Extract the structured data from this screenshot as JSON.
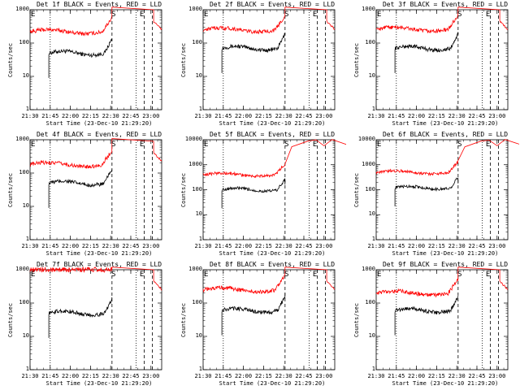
{
  "chart_data": [
    {
      "type": "line",
      "title": "Det 1f BLACK = Events, RED = LLD",
      "xlabel": "Start Time (23-Dec-10 21:29:20)",
      "ylabel": "Counts/sec",
      "log_y": true,
      "ylim": [
        1,
        1000
      ],
      "xlim": [
        "21:30",
        "23:08"
      ],
      "xticks": [
        "21:30",
        "21:45",
        "22:00",
        "22:15",
        "22:30",
        "22:45",
        "23:00"
      ],
      "yticks": [
        "1",
        "10",
        "100",
        "1000"
      ],
      "markers": [
        {
          "label": "E",
          "time": "21:30"
        },
        {
          "label": "S",
          "time": "22:30"
        },
        {
          "label": "E",
          "time": "22:51"
        }
      ],
      "series": [
        {
          "color": "#000000",
          "shape": "low_then_rise",
          "start": "21:44",
          "base": 50,
          "peak": 130
        },
        {
          "color": "#ff0000",
          "shape": "low_then_rise",
          "start": "21:30",
          "base": 220,
          "peak": 1000
        }
      ]
    },
    {
      "type": "line",
      "title": "Det 2f BLACK = Events, RED = LLD",
      "xlabel": "Start Time (23-Dec-10 21:29:20)",
      "ylabel": "Counts/sec",
      "log_y": true,
      "ylim": [
        1,
        1000
      ],
      "xlim": [
        "21:30",
        "23:08"
      ],
      "xticks": [
        "21:30",
        "21:45",
        "22:00",
        "22:15",
        "22:30",
        "22:45",
        "23:00"
      ],
      "yticks": [
        "1",
        "10",
        "100",
        "1000"
      ],
      "markers": [
        {
          "label": "E",
          "time": "21:30"
        },
        {
          "label": "S",
          "time": "22:30"
        },
        {
          "label": "E",
          "time": "22:51"
        }
      ],
      "series": [
        {
          "color": "#000000",
          "shape": "low_then_rise",
          "start": "21:44",
          "base": 70,
          "peak": 200
        },
        {
          "color": "#ff0000",
          "shape": "low_then_rise",
          "start": "21:30",
          "base": 250,
          "peak": 1000
        }
      ]
    },
    {
      "type": "line",
      "title": "Det 3f BLACK = Events, RED = LLD",
      "xlabel": "Start Time (23-Dec-10 21:29:20)",
      "ylabel": "Counts/sec",
      "log_y": true,
      "ylim": [
        1,
        1000
      ],
      "xlim": [
        "21:30",
        "23:08"
      ],
      "xticks": [
        "21:30",
        "21:45",
        "22:00",
        "22:15",
        "22:30",
        "22:45",
        "23:00"
      ],
      "yticks": [
        "1",
        "10",
        "100",
        "1000"
      ],
      "markers": [
        {
          "label": "E",
          "time": "21:30"
        },
        {
          "label": "S",
          "time": "22:30"
        },
        {
          "label": "E",
          "time": "22:51"
        }
      ],
      "series": [
        {
          "color": "#000000",
          "shape": "low_then_rise",
          "start": "21:44",
          "base": 70,
          "peak": 180
        },
        {
          "color": "#ff0000",
          "shape": "low_then_rise",
          "start": "21:30",
          "base": 260,
          "peak": 1000
        }
      ]
    },
    {
      "type": "line",
      "title": "Det 4f BLACK = Events, RED = LLD",
      "xlabel": "Start Time (23-Dec-10 21:29:20)",
      "ylabel": "Counts/sec",
      "log_y": true,
      "ylim": [
        1,
        1000
      ],
      "xlim": [
        "21:30",
        "23:08"
      ],
      "xticks": [
        "21:30",
        "21:45",
        "22:00",
        "22:15",
        "22:30",
        "22:45",
        "23:00"
      ],
      "yticks": [
        "1",
        "10",
        "100",
        "1000"
      ],
      "markers": [
        {
          "label": "E",
          "time": "21:30"
        },
        {
          "label": "S",
          "time": "22:30"
        },
        {
          "label": "E",
          "time": "22:51"
        }
      ],
      "series": [
        {
          "color": "#000000",
          "shape": "low_then_rise",
          "start": "21:44",
          "base": 50,
          "peak": 130
        },
        {
          "color": "#ff0000",
          "shape": "low_then_rise",
          "start": "21:30",
          "base": 180,
          "peak": 900
        }
      ]
    },
    {
      "type": "line",
      "title": "Det 5f BLACK = Events, RED = LLD",
      "xlabel": "Start Time (23-Dec-10 21:29:20)",
      "ylabel": "Counts/sec",
      "log_y": true,
      "ylim": [
        1,
        10000
      ],
      "xlim": [
        "21:30",
        "23:08"
      ],
      "xticks": [
        "21:30",
        "21:45",
        "22:00",
        "22:15",
        "22:30",
        "22:45",
        "23:00"
      ],
      "yticks": [
        "1",
        "10",
        "100",
        "1000",
        "10000"
      ],
      "markers": [
        {
          "label": "E",
          "time": "21:30"
        },
        {
          "label": "S",
          "time": "22:30"
        },
        {
          "label": "E",
          "time": "22:51"
        }
      ],
      "series": [
        {
          "color": "#000000",
          "shape": "low_then_rise",
          "start": "21:44",
          "base": 100,
          "peak": 160
        },
        {
          "color": "#ff0000",
          "shape": "flare",
          "start": "21:30",
          "base": 400,
          "peak": 10000
        }
      ]
    },
    {
      "type": "line",
      "title": "Det 6f BLACK = Events, RED = LLD",
      "xlabel": "Start Time (23-Dec-10 21:29:20)",
      "ylabel": "Counts/sec",
      "log_y": true,
      "ylim": [
        1,
        10000
      ],
      "xlim": [
        "21:30",
        "23:08"
      ],
      "xticks": [
        "21:30",
        "21:45",
        "22:00",
        "22:15",
        "22:30",
        "22:45",
        "23:00"
      ],
      "yticks": [
        "1",
        "10",
        "100",
        "1000",
        "10000"
      ],
      "markers": [
        {
          "label": "E",
          "time": "21:30"
        },
        {
          "label": "S",
          "time": "22:30"
        },
        {
          "label": "E",
          "time": "22:51"
        }
      ],
      "series": [
        {
          "color": "#000000",
          "shape": "low_then_rise",
          "start": "21:44",
          "base": 120,
          "peak": 180
        },
        {
          "color": "#ff0000",
          "shape": "flare",
          "start": "21:30",
          "base": 500,
          "peak": 10000
        }
      ]
    },
    {
      "type": "line",
      "title": "Det 7f BLACK = Events, RED = LLD",
      "xlabel": "Start Time (23-Dec-10 21:29:20)",
      "ylabel": "Counts/sec",
      "log_y": true,
      "ylim": [
        1,
        1000
      ],
      "xlim": [
        "21:30",
        "23:08"
      ],
      "xticks": [
        "21:30",
        "21:45",
        "22:00",
        "22:15",
        "22:30",
        "22:45",
        "23:00"
      ],
      "yticks": [
        "1",
        "10",
        "100",
        "1000"
      ],
      "markers": [
        {
          "label": "E",
          "time": "21:30"
        },
        {
          "label": "S",
          "time": "22:30"
        },
        {
          "label": "E",
          "time": "22:51"
        }
      ],
      "series": [
        {
          "color": "#000000",
          "shape": "low_then_rise",
          "start": "21:44",
          "base": 50,
          "peak": 150
        },
        {
          "color": "#ff0000",
          "shape": "saturated",
          "start": "21:30",
          "base": 1000,
          "peak": 1000
        }
      ]
    },
    {
      "type": "line",
      "title": "Det 8f BLACK = Events, RED = LLD",
      "xlabel": "Start Time (23-Dec-10 21:29:20)",
      "ylabel": "Counts/sec",
      "log_y": true,
      "ylim": [
        1,
        1000
      ],
      "xlim": [
        "21:30",
        "23:08"
      ],
      "xticks": [
        "21:30",
        "21:45",
        "22:00",
        "22:15",
        "22:30",
        "22:45",
        "23:00"
      ],
      "yticks": [
        "1",
        "10",
        "100",
        "1000"
      ],
      "markers": [
        {
          "label": "E",
          "time": "21:30"
        },
        {
          "label": "S",
          "time": "22:30"
        },
        {
          "label": "E",
          "time": "22:51"
        }
      ],
      "series": [
        {
          "color": "#000000",
          "shape": "low_then_rise",
          "start": "21:44",
          "base": 60,
          "peak": 200
        },
        {
          "color": "#ff0000",
          "shape": "low_then_rise",
          "start": "21:30",
          "base": 250,
          "peak": 1000
        }
      ]
    },
    {
      "type": "line",
      "title": "Det 9f BLACK = Events, RED = LLD",
      "xlabel": "Start Time (23-Dec-10 21:29:20)",
      "ylabel": "Counts/sec",
      "log_y": true,
      "ylim": [
        1,
        1000
      ],
      "xlim": [
        "21:30",
        "23:08"
      ],
      "xticks": [
        "21:30",
        "21:45",
        "22:00",
        "22:15",
        "22:30",
        "22:45",
        "23:00"
      ],
      "yticks": [
        "1",
        "10",
        "100",
        "1000"
      ],
      "markers": [
        {
          "label": "E",
          "time": "21:30"
        },
        {
          "label": "S",
          "time": "22:30"
        },
        {
          "label": "E",
          "time": "22:51"
        }
      ],
      "series": [
        {
          "color": "#000000",
          "shape": "low_then_rise",
          "start": "21:44",
          "base": 60,
          "peak": 150
        },
        {
          "color": "#ff0000",
          "shape": "low_then_rise",
          "start": "21:30",
          "base": 200,
          "peak": 1000
        }
      ]
    }
  ]
}
